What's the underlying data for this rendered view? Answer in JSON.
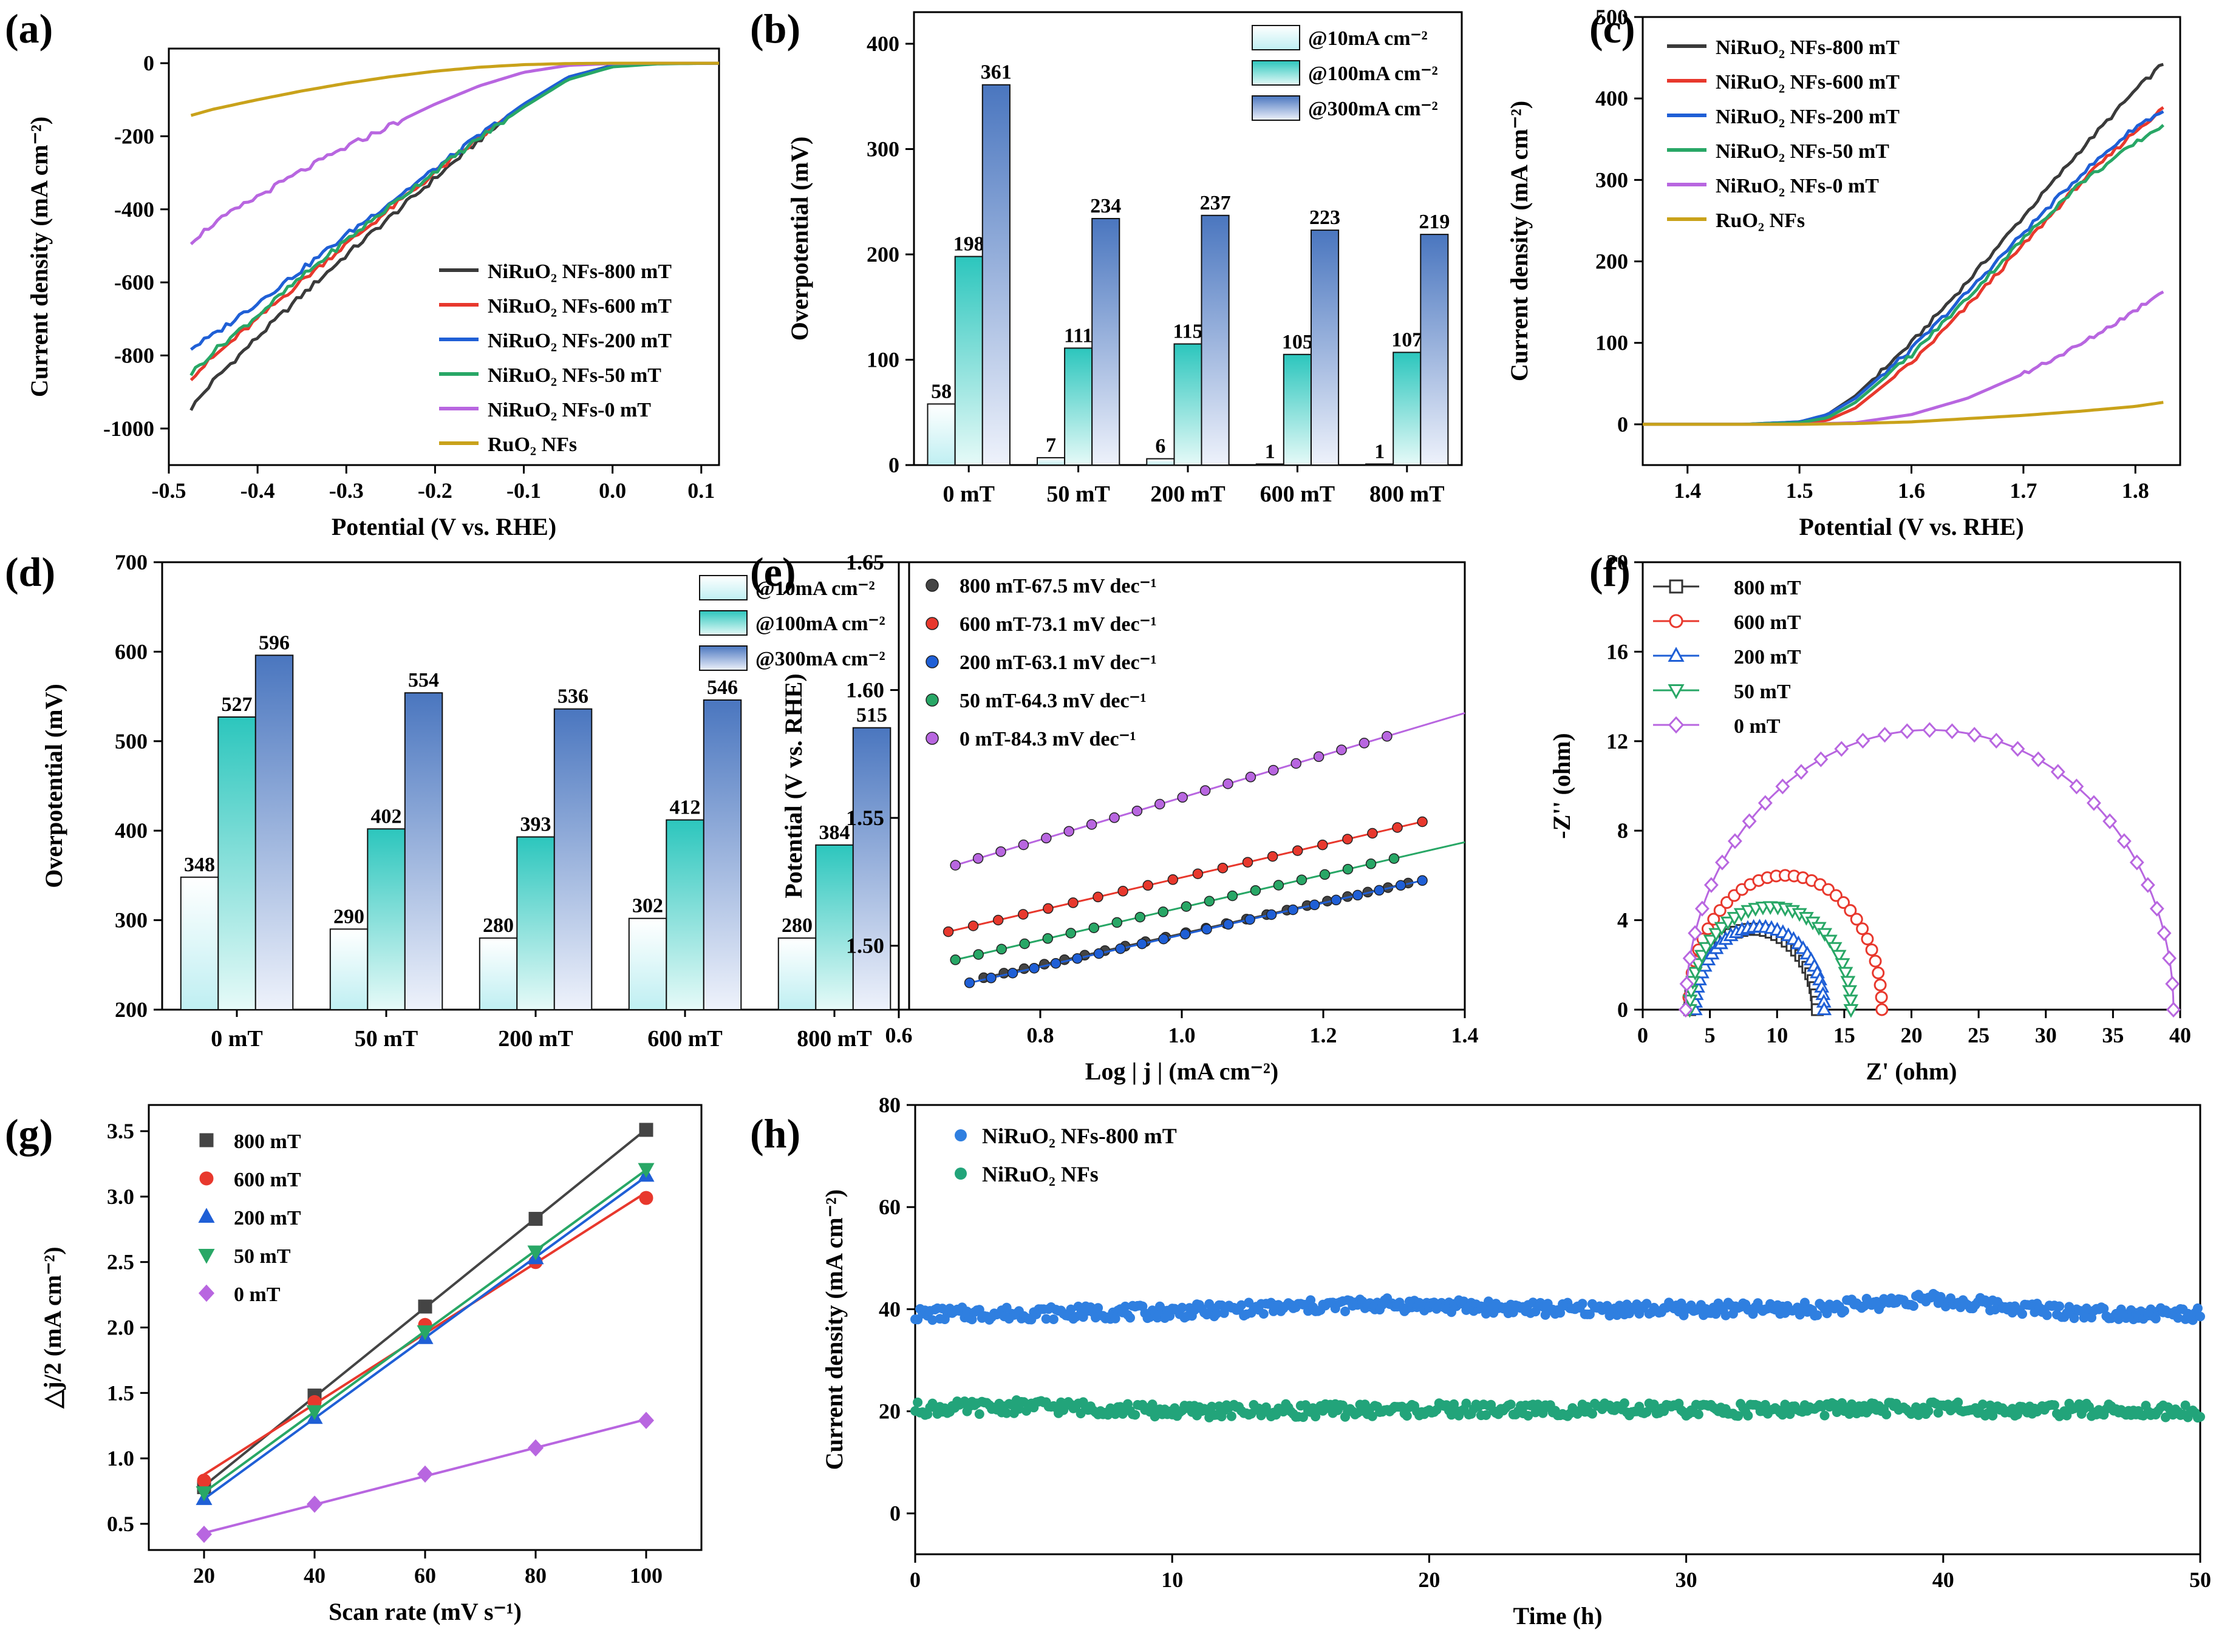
{
  "chart_data": [
    {
      "panel": "(a)",
      "type": "line",
      "xlabel": "Potential (V vs. RHE)",
      "ylabel": "Current density (mA cm⁻²)",
      "xlim": [
        -0.5,
        0.12
      ],
      "ylim": [
        -1100,
        40
      ],
      "xticks": [
        -0.5,
        -0.4,
        -0.3,
        -0.2,
        -0.1,
        0.0,
        0.1
      ],
      "xtick_labels": [
        "-0.5",
        "-0.4",
        "-0.3",
        "-0.2",
        "-0.1",
        "0.0",
        "0.1"
      ],
      "yticks": [
        0,
        -200,
        -400,
        -600,
        -800,
        -1000
      ],
      "ytick_labels": [
        "0",
        "-200",
        "-400",
        "-600",
        "-800",
        "-1000"
      ],
      "legend": "bottom-right",
      "series": [
        {
          "name": "NiRuO₂ NFs-800 mT",
          "color": "#3a3a3a",
          "x": [
            -0.475,
            -0.45,
            -0.4,
            -0.35,
            -0.3,
            -0.25,
            -0.2,
            -0.15,
            -0.1,
            -0.05,
            0.0,
            0.05,
            0.12
          ],
          "y": [
            -945,
            -870,
            -750,
            -635,
            -525,
            -420,
            -315,
            -210,
            -115,
            -38,
            -6,
            -1,
            0
          ]
        },
        {
          "name": "NiRuO₂ NFs-600 mT",
          "color": "#e8382d",
          "x": [
            -0.475,
            -0.45,
            -0.4,
            -0.35,
            -0.3,
            -0.25,
            -0.2,
            -0.15,
            -0.1,
            -0.05,
            0.0,
            0.05,
            0.12
          ],
          "y": [
            -860,
            -805,
            -700,
            -595,
            -495,
            -398,
            -300,
            -205,
            -115,
            -40,
            -7,
            -1,
            0
          ]
        },
        {
          "name": "NiRuO₂ NFs-200 mT",
          "color": "#1f5fd6",
          "x": [
            -0.475,
            -0.45,
            -0.4,
            -0.35,
            -0.3,
            -0.25,
            -0.2,
            -0.15,
            -0.1,
            -0.05,
            0.0,
            0.05,
            0.12
          ],
          "y": [
            -780,
            -745,
            -655,
            -565,
            -470,
            -380,
            -290,
            -198,
            -112,
            -38,
            -7,
            -1,
            0
          ]
        },
        {
          "name": "NiRuO₂ NFs-50 mT",
          "color": "#28a766",
          "x": [
            -0.475,
            -0.45,
            -0.4,
            -0.35,
            -0.3,
            -0.25,
            -0.2,
            -0.15,
            -0.1,
            -0.05,
            0.0,
            0.05,
            0.12
          ],
          "y": [
            -850,
            -790,
            -690,
            -585,
            -485,
            -390,
            -295,
            -205,
            -120,
            -45,
            -10,
            -2,
            0
          ]
        },
        {
          "name": "NiRuO₂ NFs-0 mT",
          "color": "#b866e0",
          "x": [
            -0.475,
            -0.45,
            -0.4,
            -0.35,
            -0.3,
            -0.25,
            -0.2,
            -0.15,
            -0.1,
            -0.05,
            0.0,
            0.05,
            0.12
          ],
          "y": [
            -488,
            -440,
            -365,
            -295,
            -230,
            -170,
            -112,
            -62,
            -25,
            -6,
            -1,
            0,
            0
          ]
        },
        {
          "name": "RuO₂ NFs",
          "color": "#c9a21a",
          "x": [
            -0.475,
            -0.45,
            -0.4,
            -0.35,
            -0.3,
            -0.25,
            -0.2,
            -0.15,
            -0.1,
            -0.05,
            0.0,
            0.05,
            0.12
          ],
          "y": [
            -143,
            -126,
            -100,
            -76,
            -55,
            -37,
            -22,
            -11,
            -4,
            -1,
            0,
            0,
            0
          ]
        }
      ]
    },
    {
      "panel": "(b)",
      "type": "bar",
      "ylabel": "Overpotential (mV)",
      "categories": [
        "0 mT",
        "50 mT",
        "200 mT",
        "600 mT",
        "800 mT"
      ],
      "ylim": [
        0,
        430
      ],
      "yticks": [
        0,
        100,
        200,
        300,
        400
      ],
      "ytick_labels": [
        "0",
        "100",
        "200",
        "300",
        "400"
      ],
      "legend": "top-right",
      "series": [
        {
          "name": "@10mA cm⁻²",
          "values": [
            58,
            7,
            6,
            1,
            1
          ],
          "labels": [
            "58",
            "7",
            "6",
            "1",
            "1"
          ],
          "color_top": "#ffffff",
          "color_bottom": "#bfeff2"
        },
        {
          "name": "@100mA cm⁻²",
          "values": [
            198,
            111,
            115,
            105,
            107
          ],
          "labels": [
            "198",
            "111",
            "115",
            "105",
            "107"
          ],
          "color_top": "#2cc6bd",
          "color_bottom": "#e6faf8"
        },
        {
          "name": "@300mA cm⁻²",
          "values": [
            361,
            234,
            237,
            223,
            219
          ],
          "labels": [
            "361",
            "234",
            "237",
            "223",
            "219"
          ],
          "color_top": "#4a76bf",
          "color_bottom": "#eef2fb"
        }
      ]
    },
    {
      "panel": "(c)",
      "type": "line",
      "xlabel": "Potential (V vs. RHE)",
      "ylabel": "Current density (mA cm⁻²)",
      "xlim": [
        1.36,
        1.84
      ],
      "ylim": [
        -50,
        500
      ],
      "xticks": [
        1.4,
        1.5,
        1.6,
        1.7,
        1.8
      ],
      "xtick_labels": [
        "1.4",
        "1.5",
        "1.6",
        "1.7",
        "1.8"
      ],
      "yticks": [
        0,
        100,
        200,
        300,
        400,
        500
      ],
      "ytick_labels": [
        "0",
        "100",
        "200",
        "300",
        "400",
        "500"
      ],
      "legend": "top-left",
      "series": [
        {
          "name": "NiRuO₂ NFs-800 mT",
          "color": "#3a3a3a",
          "x": [
            1.36,
            1.45,
            1.5,
            1.525,
            1.55,
            1.6,
            1.65,
            1.7,
            1.75,
            1.8,
            1.825
          ],
          "y": [
            0,
            0,
            3,
            12,
            35,
            100,
            175,
            255,
            335,
            410,
            443
          ]
        },
        {
          "name": "NiRuO₂ NFs-600 mT",
          "color": "#e8382d",
          "x": [
            1.36,
            1.45,
            1.5,
            1.525,
            1.55,
            1.6,
            1.65,
            1.7,
            1.75,
            1.8,
            1.825
          ],
          "y": [
            0,
            0,
            1,
            5,
            20,
            75,
            145,
            220,
            295,
            360,
            388
          ]
        },
        {
          "name": "NiRuO₂ NFs-200 mT",
          "color": "#1f5fd6",
          "x": [
            1.36,
            1.45,
            1.5,
            1.525,
            1.55,
            1.6,
            1.65,
            1.7,
            1.75,
            1.8,
            1.825
          ],
          "y": [
            0,
            0,
            3,
            12,
            32,
            92,
            162,
            235,
            305,
            365,
            385
          ]
        },
        {
          "name": "NiRuO₂ NFs-50 mT",
          "color": "#28a766",
          "x": [
            1.36,
            1.45,
            1.5,
            1.525,
            1.55,
            1.6,
            1.65,
            1.7,
            1.75,
            1.8,
            1.825
          ],
          "y": [
            0,
            0,
            2,
            8,
            27,
            85,
            155,
            228,
            295,
            345,
            368
          ]
        },
        {
          "name": "NiRuO₂ NFs-0 mT",
          "color": "#b866e0",
          "x": [
            1.36,
            1.45,
            1.5,
            1.55,
            1.6,
            1.65,
            1.7,
            1.75,
            1.8,
            1.825
          ],
          "y": [
            0,
            0,
            0,
            2,
            12,
            32,
            62,
            97,
            140,
            165
          ]
        },
        {
          "name": "RuO₂ NFs",
          "color": "#c9a21a",
          "x": [
            1.36,
            1.5,
            1.55,
            1.6,
            1.65,
            1.7,
            1.75,
            1.8,
            1.825
          ],
          "y": [
            0,
            0,
            1,
            3,
            7,
            11,
            16,
            22,
            27
          ]
        }
      ]
    },
    {
      "panel": "(d)",
      "type": "bar",
      "ylabel": "Overpotential (mV)",
      "categories": [
        "0 mT",
        "50 mT",
        "200 mT",
        "600 mT",
        "800 mT"
      ],
      "ylim": [
        200,
        700
      ],
      "yticks": [
        200,
        300,
        400,
        500,
        600,
        700
      ],
      "ytick_labels": [
        "200",
        "300",
        "400",
        "500",
        "600",
        "700"
      ],
      "legend": "top-right",
      "series": [
        {
          "name": "@10mA cm⁻²",
          "values": [
            348,
            290,
            280,
            302,
            280
          ],
          "labels": [
            "348",
            "290",
            "280",
            "302",
            "280"
          ],
          "color_top": "#ffffff",
          "color_bottom": "#bfeff2"
        },
        {
          "name": "@100mA cm⁻²",
          "values": [
            527,
            402,
            393,
            412,
            384
          ],
          "labels": [
            "527",
            "402",
            "393",
            "412",
            "384"
          ],
          "color_top": "#2cc6bd",
          "color_bottom": "#e6faf8"
        },
        {
          "name": "@300mA cm⁻²",
          "values": [
            596,
            554,
            536,
            546,
            515
          ],
          "labels": [
            "596",
            "554",
            "536",
            "546",
            "515"
          ],
          "color_top": "#4a76bf",
          "color_bottom": "#eef2fb"
        }
      ]
    },
    {
      "panel": "(e)",
      "type": "scatter",
      "xlabel": "Log | j | (mA cm⁻²)",
      "ylabel": "Potential (V vs. RHE)",
      "xlim": [
        0.6,
        1.4
      ],
      "ylim": [
        1.475,
        1.65
      ],
      "xticks": [
        0.6,
        0.8,
        1.0,
        1.2,
        1.4
      ],
      "xtick_labels": [
        "0.6",
        "0.8",
        "1.0",
        "1.2",
        "1.4"
      ],
      "yticks": [
        1.5,
        1.55,
        1.6,
        1.65
      ],
      "ytick_labels": [
        "1.50",
        "1.55",
        "1.60",
        "1.65"
      ],
      "legend": "top-left",
      "series": [
        {
          "name": "800 mT-67.5 mV dec⁻¹",
          "color": "#444444",
          "x_range": [
            0.72,
            1.32
          ],
          "n": 22,
          "fit_x": [
            0.72,
            1.32
          ],
          "fit_y": [
            1.4875,
            1.5245
          ]
        },
        {
          "name": "600 mT-73.1 mV dec⁻¹",
          "color": "#e8382d",
          "x_range": [
            0.67,
            1.34
          ],
          "n": 20,
          "fit_x": [
            0.67,
            1.34
          ],
          "fit_y": [
            1.5055,
            1.5485
          ]
        },
        {
          "name": "200 mT-63.1 mV dec⁻¹",
          "color": "#1f5fd6",
          "x_range": [
            0.7,
            1.34
          ],
          "n": 22,
          "fit_x": [
            0.7,
            1.34
          ],
          "fit_y": [
            1.4855,
            1.5255
          ]
        },
        {
          "name": "50 mT-64.3 mV dec⁻¹",
          "color": "#28a766",
          "x_range": [
            0.68,
            1.3
          ],
          "n": 20,
          "fit_x": [
            0.68,
            1.4
          ],
          "fit_y": [
            1.4945,
            1.5405
          ]
        },
        {
          "name": "0 mT-84.3 mV dec⁻¹",
          "color": "#b866e0",
          "x_range": [
            0.68,
            1.29
          ],
          "n": 20,
          "fit_x": [
            0.68,
            1.4
          ],
          "fit_y": [
            1.5315,
            1.591
          ]
        }
      ]
    },
    {
      "panel": "(f)",
      "type": "scatter",
      "xlabel": "Z' (ohm)",
      "ylabel": "-Z'' (ohm)",
      "xlim": [
        0,
        40
      ],
      "ylim": [
        0,
        20
      ],
      "xticks": [
        0,
        5,
        10,
        15,
        20,
        25,
        30,
        35,
        40
      ],
      "xtick_labels": [
        "0",
        "5",
        "10",
        "15",
        "20",
        "25",
        "30",
        "35",
        "40"
      ],
      "yticks": [
        0,
        4,
        8,
        12,
        16,
        20
      ],
      "ytick_labels": [
        "0",
        "4",
        "8",
        "12",
        "16",
        "20"
      ],
      "legend": "top-left",
      "series": [
        {
          "name": "800 mT",
          "color": "#333333",
          "marker": "square",
          "r_start": 3.5,
          "r_end": 13.0,
          "peak": 3.6
        },
        {
          "name": "600 mT",
          "color": "#e8382d",
          "marker": "circle",
          "r_start": 3.4,
          "r_end": 17.8,
          "peak": 6.0
        },
        {
          "name": "200 mT",
          "color": "#1f5fd6",
          "marker": "triangle-up",
          "r_start": 3.9,
          "r_end": 13.5,
          "peak": 3.7
        },
        {
          "name": "50 mT",
          "color": "#28a766",
          "marker": "triangle-down",
          "r_start": 3.5,
          "r_end": 15.5,
          "peak": 4.6
        },
        {
          "name": "0 mT",
          "color": "#b866e0",
          "marker": "diamond",
          "r_start": 3.2,
          "r_end": 39.5,
          "peak": 12.5
        }
      ]
    },
    {
      "panel": "(g)",
      "type": "scatter",
      "xlabel": "Scan rate (mV s⁻¹)",
      "ylabel": "△j/2 (mA cm⁻²)",
      "xlim": [
        10,
        110
      ],
      "ylim": [
        0.3,
        3.7
      ],
      "xticks": [
        20,
        40,
        60,
        80,
        100
      ],
      "xtick_labels": [
        "20",
        "40",
        "60",
        "80",
        "100"
      ],
      "yticks": [
        0.5,
        1.0,
        1.5,
        2.0,
        2.5,
        3.0,
        3.5
      ],
      "ytick_labels": [
        "0.5",
        "1.0",
        "1.5",
        "2.0",
        "2.5",
        "3.0",
        "3.5"
      ],
      "legend": "top-left",
      "series": [
        {
          "name": "800 mT",
          "color": "#444444",
          "marker": "square",
          "x": [
            20,
            40,
            60,
            80,
            100
          ],
          "y": [
            0.78,
            1.48,
            2.16,
            2.83,
            3.51
          ]
        },
        {
          "name": "600 mT",
          "color": "#e8382d",
          "marker": "circle",
          "x": [
            20,
            40,
            60,
            80,
            100
          ],
          "y": [
            0.83,
            1.43,
            2.02,
            2.5,
            2.99
          ]
        },
        {
          "name": "200 mT",
          "color": "#1f5fd6",
          "marker": "triangle-up",
          "x": [
            20,
            40,
            60,
            80,
            100
          ],
          "y": [
            0.69,
            1.31,
            1.92,
            2.53,
            3.16
          ]
        },
        {
          "name": "50 mT",
          "color": "#28a766",
          "marker": "triangle-down",
          "x": [
            20,
            40,
            60,
            80,
            100
          ],
          "y": [
            0.74,
            1.36,
            1.97,
            2.58,
            3.21
          ]
        },
        {
          "name": "0 mT",
          "color": "#b866e0",
          "marker": "diamond",
          "x": [
            20,
            40,
            60,
            80,
            100
          ],
          "y": [
            0.42,
            0.65,
            0.88,
            1.08,
            1.29
          ]
        }
      ]
    },
    {
      "panel": "(h)",
      "type": "scatter",
      "xlabel": "Time (h)",
      "ylabel": "Current density (mA cm⁻²)",
      "xlim": [
        0,
        50
      ],
      "ylim": [
        -8,
        80
      ],
      "xticks": [
        0,
        10,
        20,
        30,
        40,
        50
      ],
      "xtick_labels": [
        "0",
        "10",
        "20",
        "30",
        "40",
        "50"
      ],
      "yticks": [
        0,
        20,
        40,
        60,
        80
      ],
      "ytick_labels": [
        "0",
        "20",
        "40",
        "60",
        "80"
      ],
      "legend": "top-left",
      "series": [
        {
          "name": "NiRuO₂ NFs-800 mT",
          "color": "#2f7fe0",
          "mean": 39.8,
          "profile_t": [
            0,
            10,
            18,
            25,
            35,
            39,
            45,
            50
          ],
          "profile_y": [
            39,
            39.5,
            41,
            40,
            40,
            42,
            39.5,
            39
          ]
        },
        {
          "name": "NiRuO₂ NFs",
          "color": "#22a47a",
          "mean": 20.2,
          "profile_t": [
            0,
            5,
            10,
            20,
            30,
            40,
            50
          ],
          "profile_y": [
            20.5,
            21,
            20,
            20.3,
            20.3,
            20.5,
            20
          ]
        }
      ]
    }
  ]
}
